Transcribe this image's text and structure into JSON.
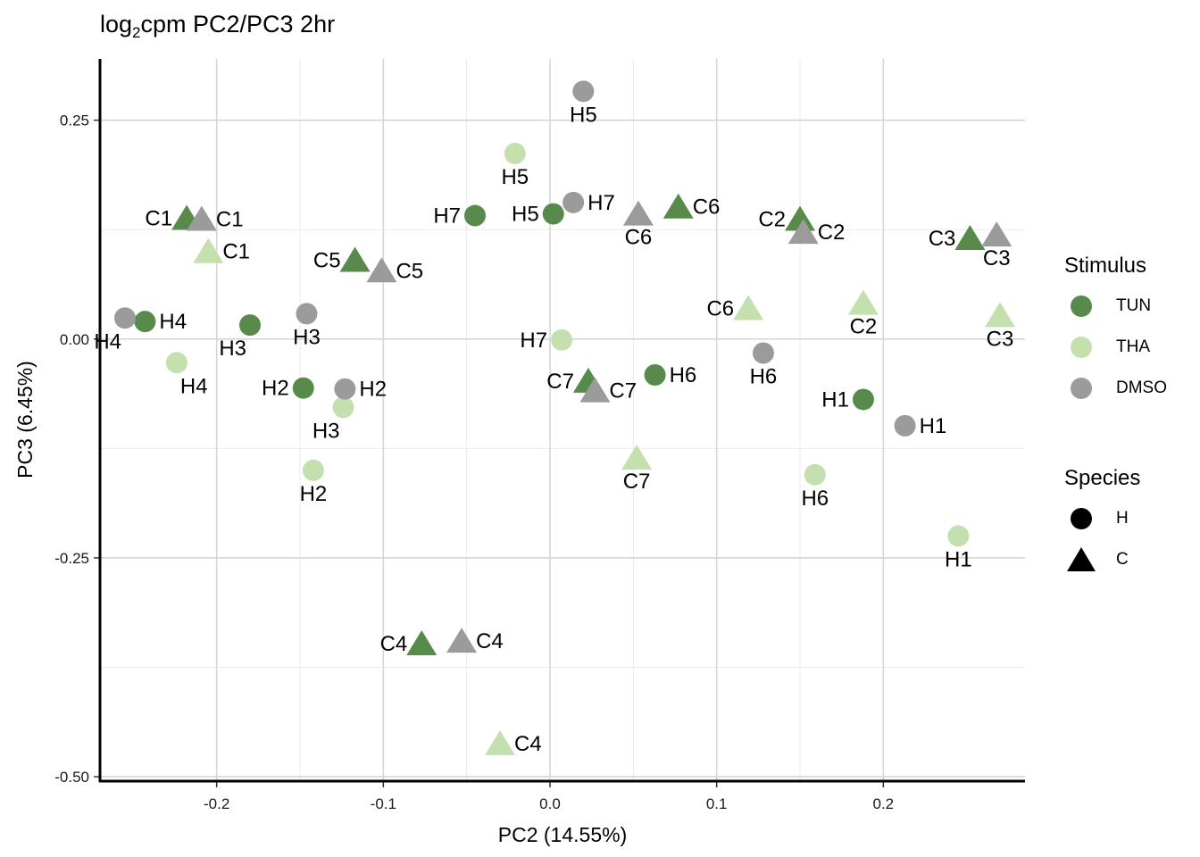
{
  "title": {
    "pre": "log",
    "sub": "2",
    "post": "cpm PC2/PC3 2hr"
  },
  "chart_data": {
    "type": "scatter",
    "xlabel": "PC2 (14.55%)",
    "ylabel": "PC3 (6.45%)",
    "xlim": [
      -0.27,
      0.285
    ],
    "ylim": [
      -0.505,
      0.32
    ],
    "x_ticks": [
      -0.2,
      -0.1,
      0.0,
      0.1,
      0.2
    ],
    "x_tick_labels": [
      "-0.2",
      "-0.1",
      "0.0",
      "0.1",
      "0.2"
    ],
    "y_ticks": [
      -0.5,
      -0.25,
      0.0,
      0.25
    ],
    "y_tick_labels": [
      "-0.50",
      "-0.25",
      "0.00",
      "0.25"
    ],
    "grid": true,
    "legend_position": "right",
    "colors": {
      "TUN": "#588a4c",
      "THA": "#c3e0ae",
      "DMSO": "#9b9b9b"
    },
    "legends": [
      {
        "title": "Stimulus",
        "items": [
          {
            "label": "TUN",
            "shape": "circle",
            "color": "#588a4c"
          },
          {
            "label": "THA",
            "shape": "circle",
            "color": "#c3e0ae"
          },
          {
            "label": "DMSO",
            "shape": "circle",
            "color": "#9b9b9b"
          }
        ]
      },
      {
        "title": "Species",
        "items": [
          {
            "label": "H",
            "shape": "circle",
            "color": "#000000"
          },
          {
            "label": "C",
            "shape": "triangle",
            "color": "#000000"
          }
        ]
      }
    ],
    "points": [
      {
        "x": -0.218,
        "y": 0.138,
        "stimulus": "TUN",
        "species": "C",
        "label": "C1",
        "label_pos": "left"
      },
      {
        "x": -0.117,
        "y": 0.09,
        "stimulus": "TUN",
        "species": "C",
        "label": "C5",
        "label_pos": "left"
      },
      {
        "x": 0.077,
        "y": 0.151,
        "stimulus": "TUN",
        "species": "C",
        "label": "C6",
        "label_pos": "right"
      },
      {
        "x": 0.15,
        "y": 0.137,
        "stimulus": "TUN",
        "species": "C",
        "label": "C2",
        "label_pos": "left"
      },
      {
        "x": 0.252,
        "y": 0.115,
        "stimulus": "TUN",
        "species": "C",
        "label": "C3",
        "label_pos": "left"
      },
      {
        "x": 0.023,
        "y": -0.048,
        "stimulus": "TUN",
        "species": "C",
        "label": "C7",
        "label_pos": "left"
      },
      {
        "x": -0.077,
        "y": -0.348,
        "stimulus": "TUN",
        "species": "C",
        "label": "C4",
        "label_pos": "left"
      },
      {
        "x": -0.243,
        "y": 0.02,
        "stimulus": "TUN",
        "species": "H",
        "label": "H4",
        "label_pos": "right"
      },
      {
        "x": -0.18,
        "y": 0.016,
        "stimulus": "TUN",
        "species": "H",
        "label": "H3",
        "label_pos": "below-left"
      },
      {
        "x": -0.148,
        "y": -0.056,
        "stimulus": "TUN",
        "species": "H",
        "label": "H2",
        "label_pos": "left"
      },
      {
        "x": -0.045,
        "y": 0.141,
        "stimulus": "TUN",
        "species": "H",
        "label": "H7",
        "label_pos": "left"
      },
      {
        "x": 0.002,
        "y": 0.143,
        "stimulus": "TUN",
        "species": "H",
        "label": "H5",
        "label_pos": "left"
      },
      {
        "x": 0.063,
        "y": -0.041,
        "stimulus": "TUN",
        "species": "H",
        "label": "H6",
        "label_pos": "right"
      },
      {
        "x": 0.188,
        "y": -0.069,
        "stimulus": "TUN",
        "species": "H",
        "label": "H1",
        "label_pos": "left"
      },
      {
        "x": -0.205,
        "y": 0.1,
        "stimulus": "THA",
        "species": "C",
        "label": "C1",
        "label_pos": "right"
      },
      {
        "x": 0.119,
        "y": 0.035,
        "stimulus": "THA",
        "species": "C",
        "label": "C6",
        "label_pos": "left"
      },
      {
        "x": 0.188,
        "y": 0.041,
        "stimulus": "THA",
        "species": "C",
        "label": "C2",
        "label_pos": "below"
      },
      {
        "x": 0.27,
        "y": 0.027,
        "stimulus": "THA",
        "species": "C",
        "label": "C3",
        "label_pos": "below"
      },
      {
        "x": 0.052,
        "y": -0.136,
        "stimulus": "THA",
        "species": "C",
        "label": "C7",
        "label_pos": "below"
      },
      {
        "x": -0.03,
        "y": -0.462,
        "stimulus": "THA",
        "species": "C",
        "label": "C4",
        "label_pos": "right"
      },
      {
        "x": -0.021,
        "y": 0.212,
        "stimulus": "THA",
        "species": "H",
        "label": "H5",
        "label_pos": "below"
      },
      {
        "x": -0.224,
        "y": -0.027,
        "stimulus": "THA",
        "species": "H",
        "label": "H4",
        "label_pos": "below-right"
      },
      {
        "x": -0.124,
        "y": -0.078,
        "stimulus": "THA",
        "species": "H",
        "label": "H3",
        "label_pos": "below-left"
      },
      {
        "x": -0.142,
        "y": -0.15,
        "stimulus": "THA",
        "species": "H",
        "label": "H2",
        "label_pos": "below"
      },
      {
        "x": 0.007,
        "y": -0.001,
        "stimulus": "THA",
        "species": "H",
        "label": "H7",
        "label_pos": "left"
      },
      {
        "x": 0.159,
        "y": -0.155,
        "stimulus": "THA",
        "species": "H",
        "label": "H6",
        "label_pos": "below"
      },
      {
        "x": 0.245,
        "y": -0.225,
        "stimulus": "THA",
        "species": "H",
        "label": "H1",
        "label_pos": "below"
      },
      {
        "x": -0.209,
        "y": 0.137,
        "stimulus": "DMSO",
        "species": "C",
        "label": "C1",
        "label_pos": "right"
      },
      {
        "x": -0.101,
        "y": 0.078,
        "stimulus": "DMSO",
        "species": "C",
        "label": "C5",
        "label_pos": "right"
      },
      {
        "x": 0.053,
        "y": 0.143,
        "stimulus": "DMSO",
        "species": "C",
        "label": "C6",
        "label_pos": "below"
      },
      {
        "x": 0.152,
        "y": 0.122,
        "stimulus": "DMSO",
        "species": "C",
        "label": "C2",
        "label_pos": "right"
      },
      {
        "x": 0.268,
        "y": 0.119,
        "stimulus": "DMSO",
        "species": "C",
        "label": "C3",
        "label_pos": "below"
      },
      {
        "x": 0.027,
        "y": -0.059,
        "stimulus": "DMSO",
        "species": "C",
        "label": "C7",
        "label_pos": "right"
      },
      {
        "x": -0.053,
        "y": -0.345,
        "stimulus": "DMSO",
        "species": "C",
        "label": "C4",
        "label_pos": "right"
      },
      {
        "x": 0.02,
        "y": 0.283,
        "stimulus": "DMSO",
        "species": "H",
        "label": "H5",
        "label_pos": "below"
      },
      {
        "x": -0.255,
        "y": 0.024,
        "stimulus": "DMSO",
        "species": "H",
        "label": "H4",
        "label_pos": "below-left"
      },
      {
        "x": -0.146,
        "y": 0.029,
        "stimulus": "DMSO",
        "species": "H",
        "label": "H3",
        "label_pos": "below"
      },
      {
        "x": -0.123,
        "y": -0.057,
        "stimulus": "DMSO",
        "species": "H",
        "label": "H2",
        "label_pos": "right"
      },
      {
        "x": 0.014,
        "y": 0.156,
        "stimulus": "DMSO",
        "species": "H",
        "label": "H7",
        "label_pos": "right"
      },
      {
        "x": 0.128,
        "y": -0.016,
        "stimulus": "DMSO",
        "species": "H",
        "label": "H6",
        "label_pos": "below"
      },
      {
        "x": 0.213,
        "y": -0.099,
        "stimulus": "DMSO",
        "species": "H",
        "label": "H1",
        "label_pos": "right"
      }
    ]
  }
}
